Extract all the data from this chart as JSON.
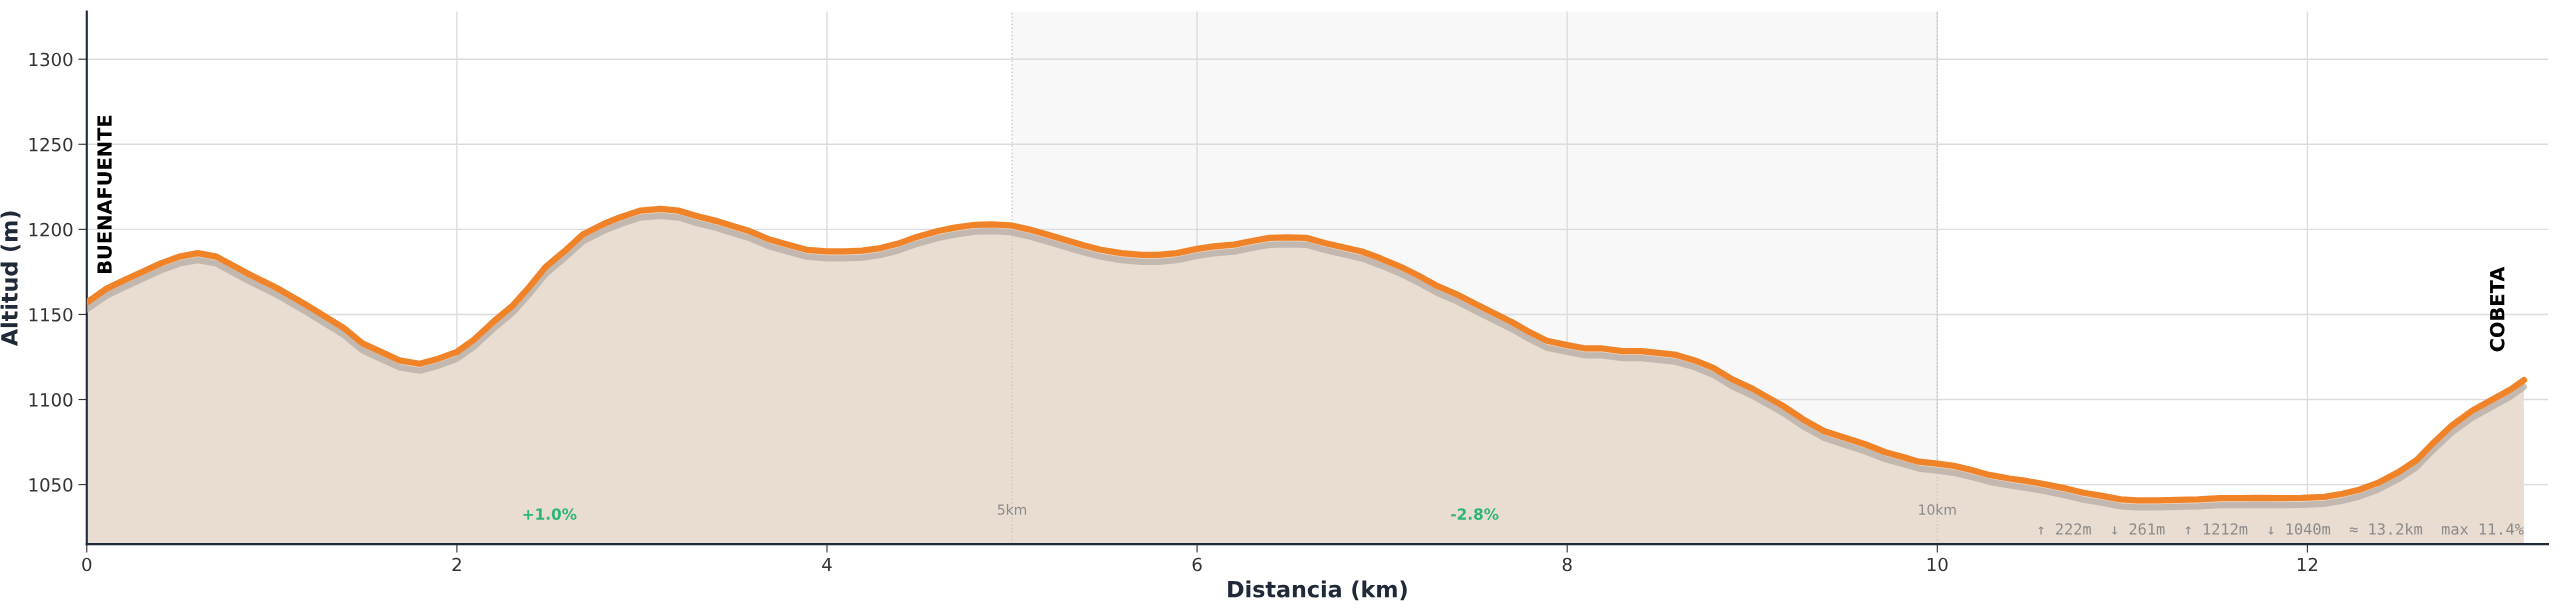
{
  "chart_data": {
    "type": "area",
    "xlabel": "Distancia (km)",
    "ylabel": "Altitud (m)",
    "xlim": [
      0,
      13.3
    ],
    "ylim": [
      1015,
      1328
    ],
    "xticks": [
      0,
      2,
      4,
      6,
      8,
      10,
      12
    ],
    "yticks": [
      1050,
      1100,
      1150,
      1200,
      1250,
      1300
    ],
    "grid": true,
    "x": [
      0,
      0.105,
      0.2,
      0.3,
      0.4,
      0.5,
      0.6,
      0.7,
      0.87,
      1.02,
      1.18,
      1.3,
      1.39,
      1.49,
      1.59,
      1.69,
      1.8,
      1.9,
      2.0,
      2.09,
      2.2,
      2.3,
      2.39,
      2.48,
      2.59,
      2.68,
      2.79,
      2.88,
      2.99,
      3.1,
      3.2,
      3.29,
      3.4,
      3.49,
      3.58,
      3.69,
      3.79,
      3.89,
      4.0,
      4.1,
      4.19,
      4.29,
      4.38,
      4.47,
      4.6,
      4.69,
      4.8,
      4.89,
      4.99,
      5.09,
      5.19,
      5.28,
      5.39,
      5.48,
      5.59,
      5.7,
      5.79,
      5.89,
      6.0,
      6.09,
      6.2,
      6.29,
      6.39,
      6.49,
      6.59,
      6.69,
      6.79,
      6.89,
      6.99,
      7.1,
      7.2,
      7.3,
      7.4,
      7.5,
      7.6,
      7.7,
      7.79,
      7.89,
      8.0,
      8.1,
      8.19,
      8.3,
      8.4,
      8.49,
      8.58,
      8.69,
      8.79,
      8.89,
      9.0,
      9.17,
      9.28,
      9.39,
      9.5,
      9.61,
      9.72,
      9.82,
      9.9,
      10.0,
      10.09,
      10.19,
      10.28,
      10.39,
      10.49,
      10.59,
      10.7,
      10.79,
      10.89,
      10.99,
      11.08,
      11.19,
      11.3,
      11.41,
      11.53,
      11.64,
      11.73,
      11.86,
      11.97,
      12.09,
      12.19,
      12.28,
      12.38,
      12.49,
      12.59,
      12.68,
      12.78,
      12.89,
      13.0,
      13.1,
      13.17
    ],
    "series": [
      {
        "color": "#f08228",
        "values": [
          1157,
          1165,
          1170,
          1175,
          1180,
          1184,
          1186,
          1184,
          1174,
          1166,
          1156,
          1148,
          1142,
          1133,
          1128,
          1123,
          1121,
          1124,
          1128,
          1135,
          1146,
          1155,
          1166,
          1178,
          1188,
          1197,
          1203,
          1207,
          1211,
          1212,
          1211,
          1208,
          1205,
          1202,
          1199,
          1194,
          1191,
          1188,
          1187,
          1187,
          1187.5,
          1189,
          1191.5,
          1195,
          1199,
          1201,
          1202.7,
          1203,
          1202.4,
          1200,
          1197,
          1194,
          1190.5,
          1188,
          1186,
          1185,
          1185,
          1186,
          1188.5,
          1190,
          1191,
          1193,
          1195,
          1195.3,
          1195,
          1192,
          1189.5,
          1187,
          1183,
          1178,
          1172.6,
          1166.6,
          1162,
          1156.4,
          1151,
          1145.6,
          1140,
          1134.5,
          1132,
          1130,
          1130,
          1128.4,
          1128.4,
          1127.4,
          1126.4,
          1123,
          1118.6,
          1112,
          1106.4,
          1096,
          1088,
          1081.4,
          1077.5,
          1073.7,
          1069,
          1066,
          1063.5,
          1062.3,
          1061,
          1058.4,
          1055.7,
          1053.6,
          1052,
          1050,
          1047.6,
          1045.2,
          1043.4,
          1041.3,
          1040.7,
          1040.7,
          1041,
          1041.3,
          1042,
          1042,
          1042.2,
          1042,
          1042.2,
          1042.8,
          1044.6,
          1047,
          1051,
          1057.2,
          1064.4,
          1074.5,
          1084.7,
          1093.4,
          1100,
          1106,
          1111.4
        ]
      }
    ],
    "bands": [
      {
        "axis": "x",
        "from": 5,
        "to": 10,
        "color": "#f8f8f8"
      }
    ],
    "ref_lines": [
      {
        "axis": "x",
        "value": 5,
        "label": "5km",
        "color": "#c8c8c8",
        "line_style": "dotted"
      },
      {
        "axis": "x",
        "value": 10,
        "label": "10km",
        "color": "#c8c8c8",
        "line_style": "dotted"
      }
    ],
    "annotations": [
      {
        "text": "BUENAFUENTE",
        "x": 0,
        "y": 1157
      },
      {
        "text": "COBETA",
        "x": 13.17,
        "y": 1111.4
      },
      "+1.0%",
      "-2.8%",
      "↑ 222m  ↓ 261m  ↑ 1212m  ↓ 1040m  ≈ 13.2km  max 11.4%"
    ]
  }
}
